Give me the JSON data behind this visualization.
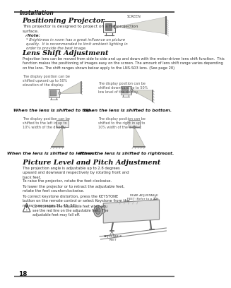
{
  "bg_color": "#ffffff",
  "header_text": "Installation",
  "page_number": "18",
  "section1_title": "Positioning Projector",
  "section1_body": "This projector is designed to project on a flat projection\nsurface.",
  "note_label": "✓Note:",
  "note_text": "Brightness in room has a great influence on picture\nquality.  It is recommended to limit ambient lighting in\norder to provide the best image.",
  "section2_title": "Lens Shift Adjustment",
  "section2_body": "Projection lens can be moved from side to side and up and down with the motor-driven lens shift function.  This\nfunction makes the positioning of images easy on the screen. The amount of lens shift range varies depending\non the lens. The shift ranges shown below apply to the LNS-S03 lens. (See page 28)",
  "caption_top_left": "The display position can be\nshifted upward up to 50%\nelevation of the display.",
  "caption_top_right": "The display position can be\nshifted downward up to 50%\nlow level of the display.",
  "caption_bottom_left": "The display position can be\nshifted to the left in up to\n10% width of the display.",
  "caption_bottom_right": "The display position can be\nshifted to the right in up to\n10% width of the display.",
  "label_top_left": "When the lens is shifted to top.",
  "label_top_right": "When the lens is shifted to bottom.",
  "label_bottom_left": "When the lens is shifted to leftmost.",
  "label_bottom_right": "When the lens is shifted to rightmost.",
  "section3_title": " Picture Level and Pitch Adjustment",
  "section3_body1": "The projection angle is adjustable up to 2.8 degrees\nupward and downward respectively by rotating front and\nback feet.",
  "section3_body2": "To raise the projector, rotate the feet clockwise.",
  "section3_body3": "To lower the projector or to retract the adjustable feet,\nrotate the feet counterclockwise.",
  "section3_body4": "To correct keystone distortion, press the KEYSTONE\nbutton on the remote control or select Keystone from the\nmenu (see pages 31, 45, 52).",
  "caution_text": "Do not rotate the adjustable feet when you\nsee the red line on the adjustable feet.  The\nadjustable feet may fall off.",
  "rear_label": "REAR ADJUSTABLE\nFEET (Refer to p.10)",
  "adj_label": "ADJUSTABLE\nFEET",
  "screen_label": "SCREEN"
}
